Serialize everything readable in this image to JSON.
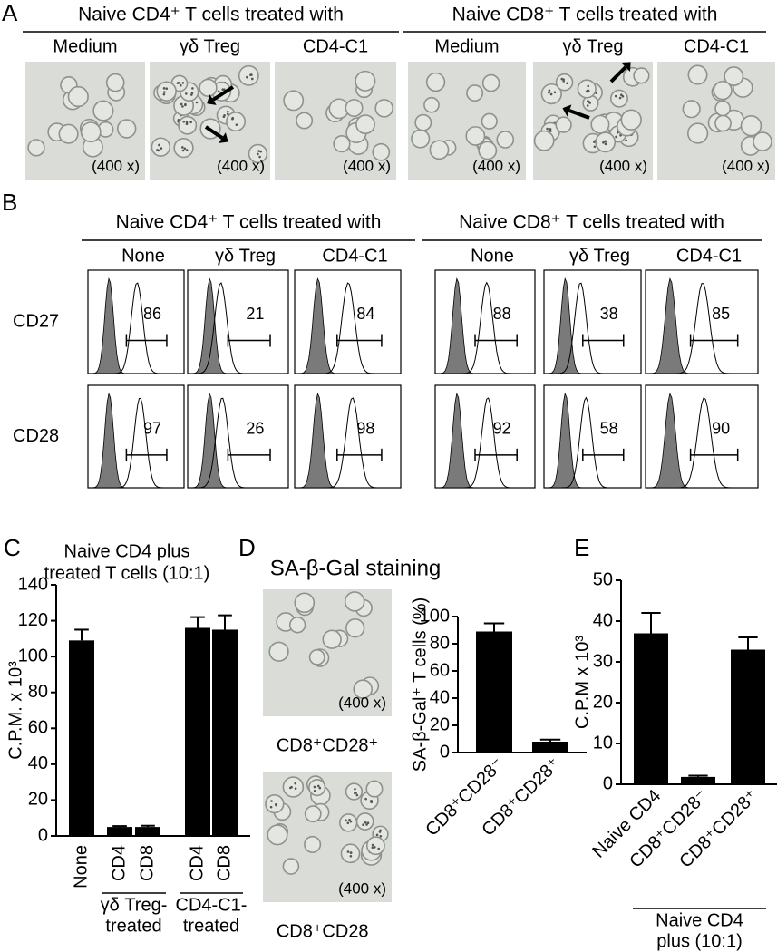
{
  "panel_a": {
    "letter": "A",
    "groups": [
      {
        "title": "Naive CD4⁺ T cells treated with",
        "images": [
          {
            "label": "Medium",
            "magnification": "(400 x)"
          },
          {
            "label": "γδ Treg",
            "magnification": "(400 x)"
          },
          {
            "label": "CD4-C1",
            "magnification": "(400 x)"
          }
        ]
      },
      {
        "title": "Naive CD8⁺ T cells treated with",
        "images": [
          {
            "label": "Medium",
            "magnification": "(400 x)"
          },
          {
            "label": "γδ Treg",
            "magnification": "(400 x)"
          },
          {
            "label": "CD4-C1",
            "magnification": "(400 x)"
          }
        ]
      }
    ]
  },
  "panel_b": {
    "letter": "B",
    "groups": [
      {
        "title": "Naive CD4⁺ T cells treated with",
        "columns": [
          "None",
          "γδ Treg",
          "CD4-C1"
        ]
      },
      {
        "title": "Naive CD8⁺ T cells treated with",
        "columns": [
          "None",
          "γδ Treg",
          "CD4-C1"
        ]
      }
    ],
    "rows": [
      {
        "marker": "CD27",
        "values": [
          86,
          21,
          84,
          88,
          38,
          85
        ]
      },
      {
        "marker": "CD28",
        "values": [
          97,
          26,
          98,
          92,
          58,
          90
        ]
      }
    ]
  },
  "panel_d_images": {
    "title": "SA-β-Gal  staining",
    "images": [
      {
        "label": "CD8⁺CD28⁺",
        "magnification": "(400 x)"
      },
      {
        "label": "CD8⁺CD28⁻",
        "magnification": "(400 x)"
      }
    ]
  },
  "chart_data": [
    {
      "type": "bar",
      "letter": "C",
      "title": [
        "Naive CD4 plus",
        "treated T cells (10:1)"
      ],
      "ylabel": "C.P.M. x 10³",
      "categories": [
        "None",
        "CD4",
        "CD8",
        "CD4",
        "CD8"
      ],
      "values": [
        109,
        5,
        5,
        116,
        115
      ],
      "errors": [
        6,
        0.5,
        0.7,
        6,
        8
      ],
      "color": "#000000",
      "ylim": [
        0,
        140
      ],
      "yticks": [
        0,
        20,
        40,
        60,
        80,
        100,
        120,
        140
      ],
      "groups": [
        {
          "lines": [
            "γδ Treg-",
            "treated"
          ]
        },
        {
          "lines": [
            "CD4-C1-",
            "treated"
          ]
        }
      ]
    },
    {
      "type": "bar",
      "letter": "D",
      "ylabel": "SA-β-Gal⁺ T cells (%)",
      "categories": [
        "CD8⁺CD28⁻",
        "CD8⁺CD28⁺"
      ],
      "values": [
        89,
        8
      ],
      "errors": [
        6,
        1.5
      ],
      "color": "#000000",
      "ylim": [
        0,
        100
      ],
      "yticks": [
        0,
        20,
        40,
        60,
        80,
        100
      ]
    },
    {
      "type": "bar",
      "letter": "E",
      "ylabel": "C.P.M x 10³",
      "categories": [
        "Naive CD4",
        "CD8⁺CD28⁻",
        "CD8⁺CD28⁺"
      ],
      "values": [
        37,
        1.8,
        33
      ],
      "errors": [
        5,
        0.3,
        3
      ],
      "color": "#000000",
      "ylim": [
        0,
        50
      ],
      "yticks": [
        0,
        10,
        20,
        30,
        40,
        50
      ],
      "groups": [
        {
          "lines": [
            "Naive CD4",
            "plus (10:1)"
          ]
        }
      ]
    }
  ]
}
